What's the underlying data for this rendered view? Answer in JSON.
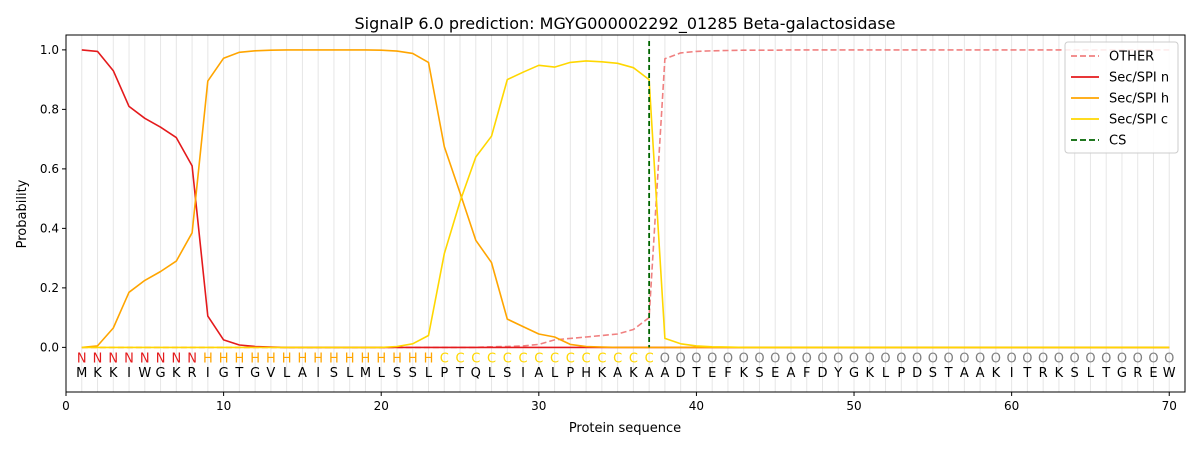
{
  "chart_data": {
    "type": "line",
    "title": "SignalP 6.0 prediction: MGYG000002292_01285 Beta-galactosidase",
    "xlabel": "Protein sequence",
    "ylabel": "Probability",
    "xlim": [
      0,
      71
    ],
    "ylim": [
      -0.15,
      1.05
    ],
    "x_ticks": [
      0,
      10,
      20,
      30,
      40,
      50,
      60,
      70
    ],
    "y_ticks": [
      0.0,
      0.2,
      0.4,
      0.6,
      0.8,
      1.0
    ],
    "grid": "vertical lines at each residue",
    "legend_position": "top-right",
    "sequence": [
      "M",
      "K",
      "K",
      "I",
      "W",
      "G",
      "K",
      "R",
      "I",
      "G",
      "T",
      "G",
      "V",
      "L",
      "A",
      "I",
      "S",
      "L",
      "M",
      "L",
      "S",
      "S",
      "L",
      "P",
      "T",
      "Q",
      "L",
      "S",
      "I",
      "A",
      "L",
      "P",
      "H",
      "K",
      "A",
      "K",
      "A",
      "A",
      "D",
      "T",
      "E",
      "F",
      "K",
      "S",
      "E",
      "A",
      "F",
      "D",
      "Y",
      "G",
      "K",
      "L",
      "P",
      "D",
      "S",
      "T",
      "A",
      "A",
      "K",
      "I",
      "T",
      "R",
      "K",
      "S",
      "L",
      "T",
      "G",
      "R",
      "E",
      "W"
    ],
    "labels": [
      "N",
      "N",
      "N",
      "N",
      "N",
      "N",
      "N",
      "N",
      "H",
      "H",
      "H",
      "H",
      "H",
      "H",
      "H",
      "H",
      "H",
      "H",
      "H",
      "H",
      "H",
      "H",
      "H",
      "C",
      "C",
      "C",
      "C",
      "C",
      "C",
      "C",
      "C",
      "C",
      "C",
      "C",
      "C",
      "C",
      "C",
      "O",
      "O",
      "O",
      "O",
      "O",
      "O",
      "O",
      "O",
      "O",
      "O",
      "O",
      "O",
      "O",
      "O",
      "O",
      "O",
      "O",
      "O",
      "O",
      "O",
      "O",
      "O",
      "O",
      "O",
      "O",
      "O",
      "O",
      "O",
      "O",
      "O",
      "O",
      "O",
      "O"
    ],
    "label_colors": {
      "N": "#e41a1c",
      "H": "#ffa500",
      "C": "#ffd700",
      "O": "#808080"
    },
    "cs_position": 37,
    "series": [
      {
        "name": "OTHER",
        "color": "#f08080",
        "dash": true,
        "values": [
          0,
          0,
          0,
          0,
          0,
          0,
          0,
          0,
          0,
          0,
          0,
          0,
          0,
          0,
          0,
          0,
          0,
          0,
          0,
          0,
          0,
          0,
          0,
          0,
          0,
          0,
          0.002,
          0.003,
          0.005,
          0.01,
          0.025,
          0.03,
          0.035,
          0.04,
          0.045,
          0.06,
          0.1,
          0.97,
          0.99,
          0.995,
          0.997,
          0.998,
          0.999,
          0.999,
          0.999,
          1,
          1,
          1,
          1,
          1,
          1,
          1,
          1,
          1,
          1,
          1,
          1,
          1,
          1,
          1,
          1,
          1,
          1,
          1,
          1,
          1,
          1,
          1,
          1,
          1
        ]
      },
      {
        "name": "Sec/SPI n",
        "color": "#e41a1c",
        "dash": false,
        "values": [
          1.0,
          0.995,
          0.93,
          0.81,
          0.77,
          0.74,
          0.705,
          0.61,
          0.105,
          0.025,
          0.008,
          0.003,
          0.001,
          0,
          0,
          0,
          0,
          0,
          0,
          0,
          0,
          0,
          0,
          0,
          0,
          0,
          0,
          0,
          0,
          0,
          0,
          0,
          0,
          0,
          0,
          0,
          0,
          0,
          0,
          0,
          0,
          0,
          0,
          0,
          0,
          0,
          0,
          0,
          0,
          0,
          0,
          0,
          0,
          0,
          0,
          0,
          0,
          0,
          0,
          0,
          0,
          0,
          0,
          0,
          0,
          0,
          0,
          0,
          0,
          0
        ]
      },
      {
        "name": "Sec/SPI h",
        "color": "#ffa500",
        "dash": false,
        "values": [
          0,
          0.005,
          0.065,
          0.185,
          0.225,
          0.255,
          0.29,
          0.385,
          0.895,
          0.972,
          0.992,
          0.997,
          0.999,
          1.0,
          1.0,
          1.0,
          1.0,
          1.0,
          1.0,
          0.999,
          0.996,
          0.988,
          0.958,
          0.675,
          0.52,
          0.36,
          0.285,
          0.095,
          0.07,
          0.045,
          0.035,
          0.01,
          0.003,
          0.001,
          0,
          0,
          0,
          0,
          0,
          0,
          0,
          0,
          0,
          0,
          0,
          0,
          0,
          0,
          0,
          0,
          0,
          0,
          0,
          0,
          0,
          0,
          0,
          0,
          0,
          0,
          0,
          0,
          0,
          0,
          0,
          0,
          0,
          0,
          0,
          0
        ]
      },
      {
        "name": "Sec/SPI c",
        "color": "#ffd700",
        "dash": false,
        "values": [
          0,
          0,
          0,
          0,
          0,
          0,
          0,
          0,
          0,
          0,
          0,
          0,
          0,
          0,
          0,
          0,
          0,
          0,
          0,
          0,
          0.003,
          0.012,
          0.04,
          0.315,
          0.49,
          0.64,
          0.71,
          0.9,
          0.925,
          0.948,
          0.942,
          0.958,
          0.963,
          0.96,
          0.955,
          0.94,
          0.9,
          0.03,
          0.012,
          0.005,
          0.002,
          0.001,
          0,
          0,
          0,
          0,
          0,
          0,
          0,
          0,
          0,
          0,
          0,
          0,
          0,
          0,
          0,
          0,
          0,
          0,
          0,
          0,
          0,
          0,
          0,
          0,
          0,
          0,
          0,
          0
        ]
      }
    ],
    "legend": [
      {
        "name": "OTHER",
        "color": "#f08080",
        "dash": true
      },
      {
        "name": "Sec/SPI n",
        "color": "#e41a1c",
        "dash": false
      },
      {
        "name": "Sec/SPI h",
        "color": "#ffa500",
        "dash": false
      },
      {
        "name": "Sec/SPI c",
        "color": "#ffd700",
        "dash": false
      },
      {
        "name": "CS",
        "color": "#006400",
        "dash": true
      }
    ]
  }
}
